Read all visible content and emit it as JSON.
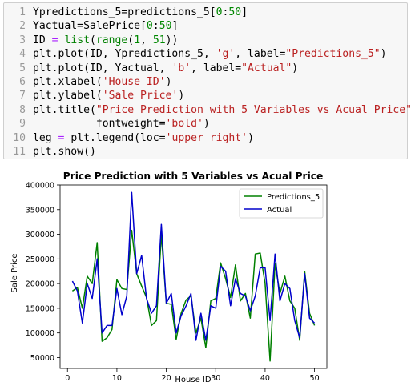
{
  "code_lines": [
    {
      "n": "1",
      "parts": [
        [
          "Ypredictions_5=predictions_5[",
          ""
        ],
        [
          "0",
          "num"
        ],
        [
          ":",
          ""
        ],
        [
          "50",
          "num"
        ],
        [
          "]",
          ""
        ]
      ]
    },
    {
      "n": "2",
      "parts": [
        [
          "Yactual=SalePrice[",
          ""
        ],
        [
          "0",
          "num"
        ],
        [
          ":",
          ""
        ],
        [
          "50",
          "num"
        ],
        [
          "]",
          ""
        ]
      ]
    },
    {
      "n": "3",
      "parts": [
        [
          "ID ",
          ""
        ],
        [
          "=",
          "op"
        ],
        [
          " ",
          ""
        ],
        [
          "list",
          "kw"
        ],
        [
          "(",
          ""
        ],
        [
          "range",
          "kw"
        ],
        [
          "(",
          ""
        ],
        [
          "1",
          "num"
        ],
        [
          ", ",
          ""
        ],
        [
          "51",
          "num"
        ],
        [
          "))",
          ""
        ]
      ]
    },
    {
      "n": "4",
      "parts": [
        [
          "plt.plot(ID, Ypredictions_5, ",
          ""
        ],
        [
          "'g'",
          "str"
        ],
        [
          ", label=",
          ""
        ],
        [
          "\"Predictions_5\"",
          "str"
        ],
        [
          ")",
          ""
        ]
      ]
    },
    {
      "n": "5",
      "parts": [
        [
          "plt.plot(ID, Yactual, ",
          ""
        ],
        [
          "'b'",
          "str"
        ],
        [
          ", label=",
          ""
        ],
        [
          "\"Actual\"",
          "str"
        ],
        [
          ")",
          ""
        ]
      ]
    },
    {
      "n": "6",
      "parts": [
        [
          "plt.xlabel(",
          ""
        ],
        [
          "'House ID'",
          "str"
        ],
        [
          ")",
          ""
        ]
      ]
    },
    {
      "n": "7",
      "parts": [
        [
          "plt.ylabel(",
          ""
        ],
        [
          "'Sale Price'",
          "str"
        ],
        [
          ")",
          ""
        ]
      ]
    },
    {
      "n": "8",
      "parts": [
        [
          "plt.title(",
          ""
        ],
        [
          "\"Price Prediction with 5 Variables vs Acual Price\"",
          "str"
        ],
        [
          ",",
          ""
        ]
      ]
    },
    {
      "n": "9",
      "parts": [
        [
          "          fontweight=",
          ""
        ],
        [
          "'bold'",
          "str"
        ],
        [
          ")",
          ""
        ]
      ]
    },
    {
      "n": "10",
      "parts": [
        [
          "leg ",
          ""
        ],
        [
          "=",
          "op"
        ],
        [
          " plt.legend(loc=",
          ""
        ],
        [
          "'upper right'",
          "str"
        ],
        [
          ")",
          ""
        ]
      ]
    },
    {
      "n": "11",
      "parts": [
        [
          "plt.show()",
          ""
        ]
      ]
    }
  ],
  "chart_data": {
    "type": "line",
    "title": "Price Prediction with 5 Variables vs Acual Price",
    "xlabel": "House ID",
    "ylabel": "Sale Price",
    "xlim": [
      -1.5,
      52.5
    ],
    "ylim": [
      28000,
      400000
    ],
    "xticks": [
      0,
      10,
      20,
      30,
      40,
      50
    ],
    "yticks": [
      50000,
      100000,
      150000,
      200000,
      250000,
      300000,
      350000,
      400000
    ],
    "legend_loc": "upper right",
    "x": [
      1,
      2,
      3,
      4,
      5,
      6,
      7,
      8,
      9,
      10,
      11,
      12,
      13,
      14,
      15,
      16,
      17,
      18,
      19,
      20,
      21,
      22,
      23,
      24,
      25,
      26,
      27,
      28,
      29,
      30,
      31,
      32,
      33,
      34,
      35,
      36,
      37,
      38,
      39,
      40,
      41,
      42,
      43,
      44,
      45,
      46,
      47,
      48,
      49,
      50
    ],
    "series": [
      {
        "name": "Predictions_5",
        "color": "#008000",
        "values": [
          185000,
          192000,
          150000,
          215000,
          200000,
          283000,
          83000,
          90000,
          107000,
          208000,
          190000,
          188000,
          308000,
          220000,
          195000,
          172000,
          115000,
          125000,
          300000,
          160000,
          158000,
          87000,
          140000,
          167000,
          175000,
          100000,
          130000,
          70000,
          165000,
          170000,
          242000,
          210000,
          172000,
          238000,
          165000,
          180000,
          130000,
          260000,
          262000,
          200000,
          43000,
          240000,
          180000,
          215000,
          165000,
          150000,
          85000,
          225000,
          140000,
          115000
        ]
      },
      {
        "name": "Actual",
        "color": "#0000cc",
        "values": [
          205000,
          185000,
          120000,
          200000,
          170000,
          250000,
          100000,
          115000,
          115000,
          190000,
          137000,
          175000,
          385000,
          220000,
          257000,
          170000,
          140000,
          155000,
          320000,
          160000,
          180000,
          100000,
          135000,
          155000,
          180000,
          85000,
          140000,
          85000,
          155000,
          150000,
          235000,
          225000,
          155000,
          210000,
          180000,
          175000,
          145000,
          175000,
          232000,
          232000,
          125000,
          260000,
          165000,
          200000,
          190000,
          125000,
          90000,
          220000,
          130000,
          120000
        ]
      }
    ]
  }
}
